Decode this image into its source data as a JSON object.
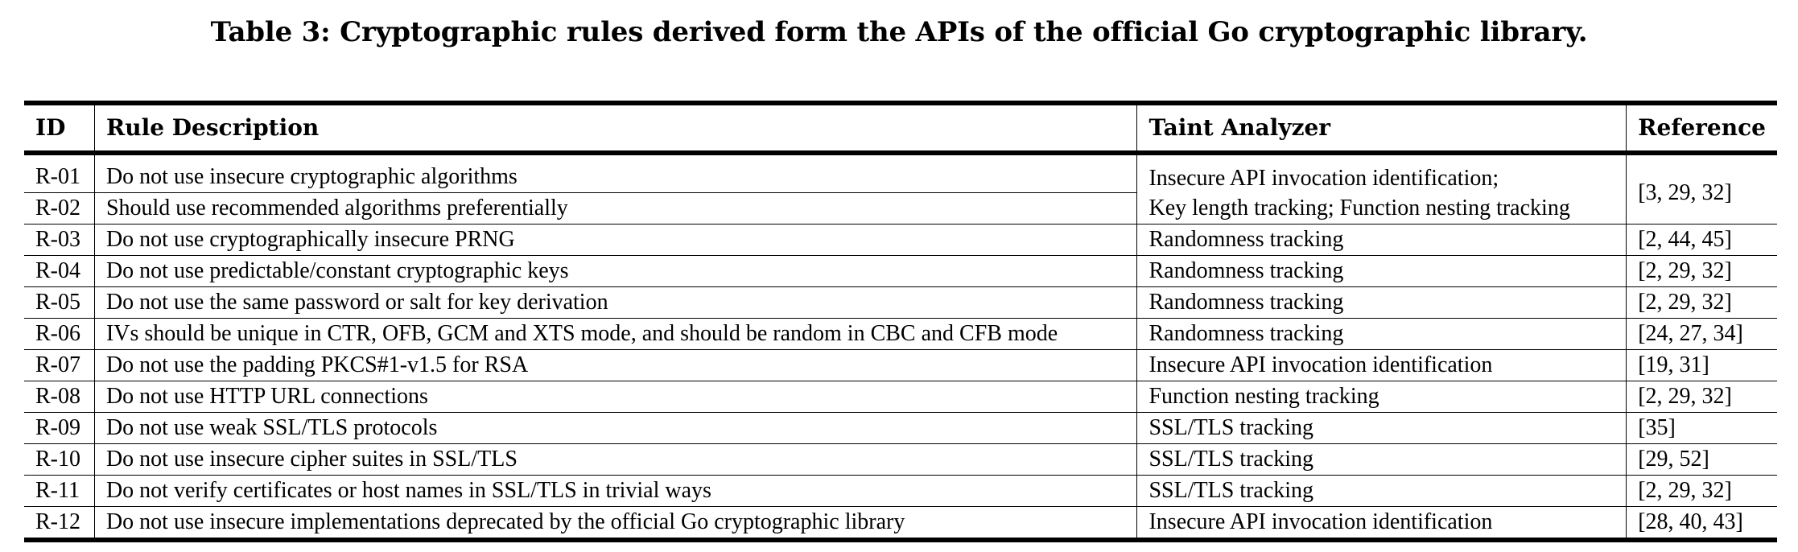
{
  "caption": "Table 3: Cryptographic rules derived form the APIs of the official Go cryptographic library.",
  "table": {
    "headers": {
      "id": "ID",
      "description": "Rule Description",
      "taint": "Taint Analyzer",
      "reference": "Reference"
    },
    "rows": [
      {
        "id": "R-01",
        "description": "Do not use insecure cryptographic algorithms"
      },
      {
        "id": "R-02",
        "description": "Should use recommended algorithms preferentially"
      },
      {
        "id": "R-03",
        "description": "Do not use cryptographically insecure PRNG",
        "taint": "Randomness tracking",
        "reference": "[2, 44, 45]"
      },
      {
        "id": "R-04",
        "description": "Do not use predictable/constant cryptographic keys",
        "taint": "Randomness tracking",
        "reference": "[2, 29, 32]"
      },
      {
        "id": "R-05",
        "description": "Do not use the same password or salt for key derivation",
        "taint": "Randomness tracking",
        "reference": "[2, 29, 32]"
      },
      {
        "id": "R-06",
        "description": "IVs should be unique in CTR, OFB, GCM and XTS mode, and should be random in CBC and CFB mode",
        "taint": "Randomness tracking",
        "reference": "[24, 27, 34]"
      },
      {
        "id": "R-07",
        "description": "Do not use the padding PKCS#1-v1.5 for RSA",
        "taint": "Insecure API invocation identification",
        "reference": "[19, 31]"
      },
      {
        "id": "R-08",
        "description": "Do not use HTTP URL connections",
        "taint": "Function nesting tracking",
        "reference": "[2, 29, 32]"
      },
      {
        "id": "R-09",
        "description": "Do not use weak SSL/TLS protocols",
        "taint": "SSL/TLS tracking",
        "reference": "[35]"
      },
      {
        "id": "R-10",
        "description": "Do not use insecure cipher suites in SSL/TLS",
        "taint": "SSL/TLS tracking",
        "reference": "[29, 52]"
      },
      {
        "id": "R-11",
        "description": "Do not verify certificates or host names in SSL/TLS in trivial ways",
        "taint": "SSL/TLS tracking",
        "reference": "[2, 29, 32]"
      },
      {
        "id": "R-12",
        "description": "Do not use insecure implementations deprecated by the official Go cryptographic library",
        "taint": "Insecure API invocation identification",
        "reference": "[28, 40, 43]"
      }
    ],
    "merged_01_02": {
      "taint_line1": "Insecure API invocation identification;",
      "taint_line2": "Key length tracking; Function nesting tracking",
      "reference": "[3, 29, 32]"
    }
  }
}
